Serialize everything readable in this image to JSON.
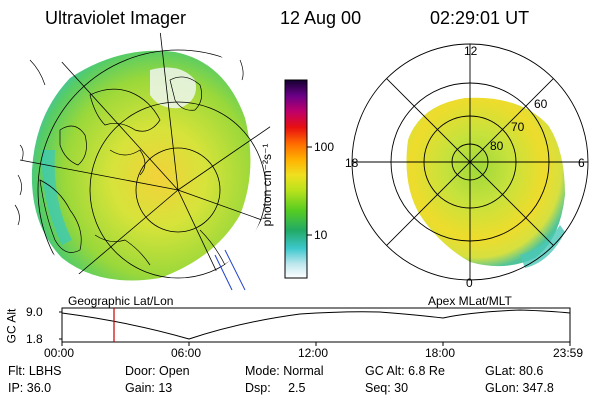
{
  "header": {
    "title": "Ultraviolet Imager",
    "date": "12 Aug 00",
    "time": "02:29:01 UT"
  },
  "left_panel": {
    "label": "Geographic Lat/Lon"
  },
  "right_panel": {
    "label": "Apex MLat/MLT",
    "mlt_labels": [
      "12",
      "18",
      "6",
      "0"
    ],
    "lat_labels": [
      "60",
      "70",
      "80"
    ]
  },
  "colorbar": {
    "unit_label": "photon cm⁻²s⁻¹",
    "ticks": [
      "100",
      "10"
    ]
  },
  "altitude_plot": {
    "axis_label": "GC Alt",
    "y_ticks": [
      "9.0",
      "1.8"
    ],
    "x_ticks": [
      "00:00",
      "06:00",
      "12:00",
      "18:00",
      "23:59"
    ]
  },
  "status": {
    "row1": [
      {
        "name": "Flt",
        "text": "Flt: LBHS"
      },
      {
        "name": "Door",
        "text": "Door: Open"
      },
      {
        "name": "Mode",
        "text": "Mode: Normal"
      },
      {
        "name": "GCAlt",
        "text": "GC Alt: 6.8 Re"
      },
      {
        "name": "GLat",
        "text": "GLat:  80.6"
      }
    ],
    "row2": [
      {
        "name": "IP",
        "text": "IP: 36.0"
      },
      {
        "name": "Gain",
        "text": "Gain: 13"
      },
      {
        "name": "Dsp",
        "text": "Dsp:     2.5"
      },
      {
        "name": "Seq",
        "text": "Seq: 30"
      },
      {
        "name": "GLon",
        "text": "GLon: 347.8"
      }
    ]
  },
  "colors": {
    "trace": "#000000",
    "current_time_marker": "#cc0000"
  }
}
